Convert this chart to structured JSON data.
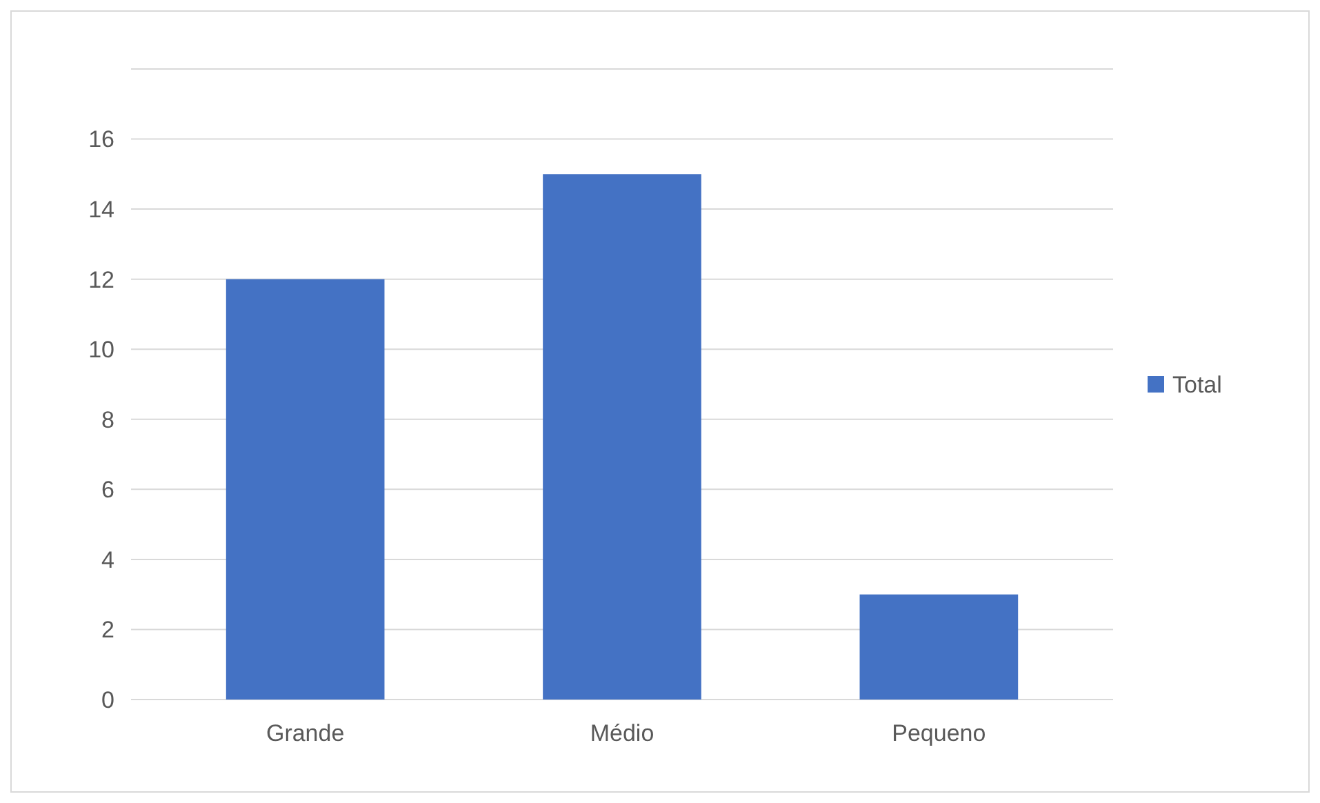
{
  "chart_data": {
    "type": "bar",
    "categories": [
      "Grande",
      "Médio",
      "Pequeno"
    ],
    "series": [
      {
        "name": "Total",
        "color": "#4472c4",
        "values": [
          12,
          15,
          3
        ]
      }
    ],
    "ylim": [
      0,
      18
    ],
    "yticks": [
      0,
      2,
      4,
      6,
      8,
      10,
      12,
      14,
      16,
      {
        "value": 18,
        "label": null
      }
    ],
    "grid": "y",
    "legend": "right"
  }
}
